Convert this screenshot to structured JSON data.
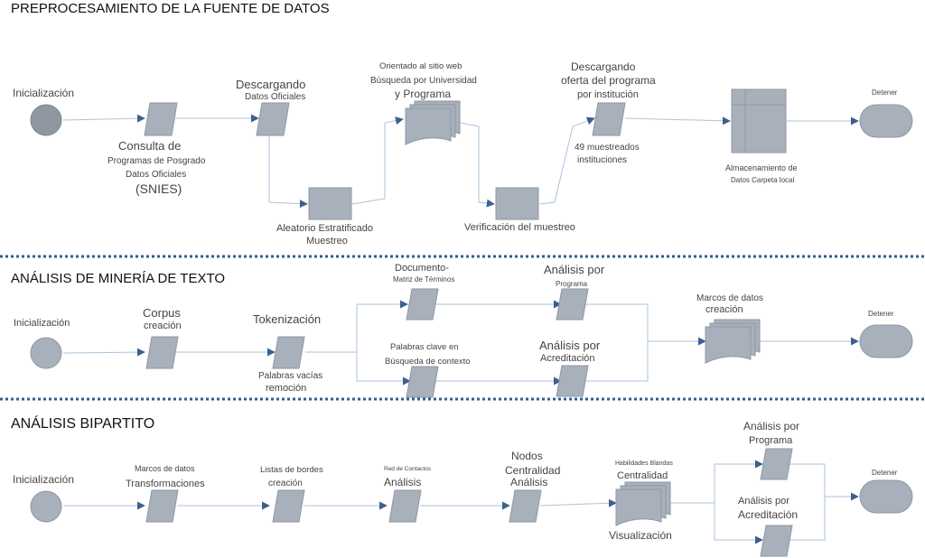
{
  "sections": [
    {
      "title": "PREPROCESAMIENTO DE LA FUENTE DE DATOS",
      "nodes": {
        "start": "Inicialización",
        "consulta": [
          "Consulta de",
          "Programas de Posgrado",
          "Datos Oficiales",
          "(SNIES)"
        ],
        "descargando": [
          "Descargando",
          "Datos Oficiales"
        ],
        "aleatorio": [
          "Aleatorio Estratificado",
          "Muestreo"
        ],
        "orientado": [
          "Orientado al sitio web",
          "Búsqueda por Universidad",
          "y Programa"
        ],
        "verificacion": "Verificación del muestreo",
        "oferta": [
          "Descargando",
          "oferta del programa",
          "por institución"
        ],
        "muestreados": [
          "49 muestreados",
          "instituciones"
        ],
        "almacenamiento": [
          "Almacenamiento de",
          "Datos Carpeta local"
        ],
        "stop": "Detener"
      }
    },
    {
      "title": "ANÁLISIS DE MINERÍA DE TEXTO",
      "nodes": {
        "start": "Inicialización",
        "corpus": [
          "Corpus",
          "creación"
        ],
        "tokenizacion": "Tokenización",
        "vacias": [
          "Palabras vacías",
          "remoción"
        ],
        "documento": [
          "Documento-",
          "Matriz de Términos"
        ],
        "clave": [
          "Palabras clave en",
          "Búsqueda de contexto"
        ],
        "prog": [
          "Análisis por",
          "Programa"
        ],
        "acred": [
          "Análisis por",
          "Acreditación"
        ],
        "marcos": [
          "Marcos de datos",
          "creación"
        ],
        "stop": "Detener"
      }
    },
    {
      "title": "ANÁLISIS BIPARTITO",
      "nodes": {
        "start": "Inicialización",
        "transform": [
          "Marcos de datos",
          "Transformaciones"
        ],
        "bordes": [
          "Listas de bordes",
          "creación"
        ],
        "red": [
          "Red de Contactos",
          "Análisis"
        ],
        "nodos": [
          "Nodos",
          "Centralidad",
          "Análisis"
        ],
        "habilidades": [
          "Habilidades Blandas",
          "Centralidad"
        ],
        "visual": "Visualización",
        "prog": [
          "Análisis por",
          "Programa"
        ],
        "acred": [
          "Análisis por",
          "Acreditación"
        ],
        "stop": "Detener"
      }
    }
  ]
}
